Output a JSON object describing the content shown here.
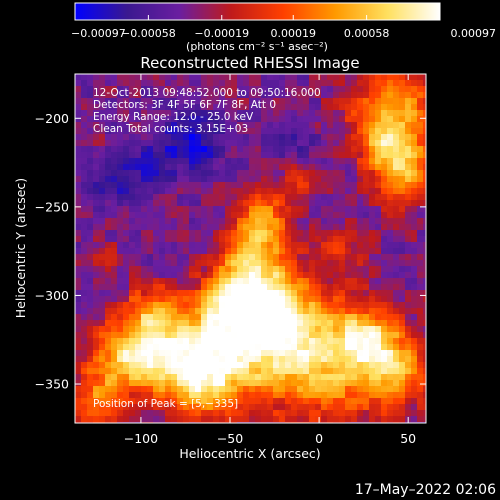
{
  "chart_data": {
    "type": "heatmap",
    "title": "Reconstructed RHESSI Image",
    "xlabel": "Heliocentric X (arcsec)",
    "ylabel": "Heliocentric Y (arcsec)",
    "xlim": [
      -137,
      60
    ],
    "ylim": [
      -372,
      -175
    ],
    "x_ticks": [
      -100,
      -50,
      0,
      50
    ],
    "x_tick_labels": [
      "−100",
      "−50",
      "0",
      "50"
    ],
    "y_ticks": [
      -200,
      -250,
      -300,
      -350
    ],
    "y_tick_labels": [
      "−200",
      "−250",
      "−300",
      "−350"
    ],
    "colorbar": {
      "range": [
        -0.00097,
        0.00097
      ],
      "ticks": [
        -0.00097,
        -0.00058,
        -0.00019,
        0.00019,
        0.00058,
        0.00097
      ],
      "tick_labels": [
        "−0.00097",
        "−0.00058",
        "−0.00019",
        "0.00019",
        "0.00058",
        "0.00097"
      ],
      "unit_label": "(photons cm⁻² s⁻¹ asec⁻²)",
      "colormap": [
        "#0000ff",
        "#3a1890",
        "#6a1ea0",
        "#c01a1a",
        "#ff4000",
        "#ff9a00",
        "#ffe060",
        "#ffffff"
      ]
    },
    "info_lines": [
      "12-Oct-2013 09:48:52.000 to 09:50:16.000",
      "Detectors: 3F 4F 5F 6F 7F 8F, Att 0",
      "Energy Range: 12.0 - 25.0 keV",
      "Clean     Total counts: 3.15E+03"
    ],
    "peak_label": "Position of Peak = [5,−335]",
    "peak_position": [
      5,
      -335
    ],
    "timestamp": "17–May–2022 02:06"
  }
}
